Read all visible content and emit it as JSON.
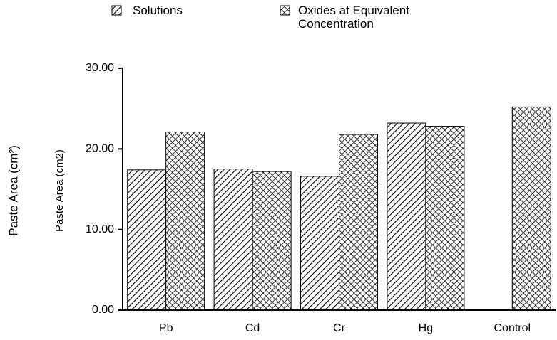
{
  "chart_data": {
    "type": "bar",
    "y_label_outer": "Paste Area (cm²)",
    "y_label": "Paste Area (cm2)",
    "categories": [
      "Pb",
      "Cd",
      "Cr",
      "Hg",
      "Control"
    ],
    "series": [
      {
        "name": "Solutions",
        "color": "#000000",
        "pattern": "diagonal",
        "values": [
          17.4,
          17.5,
          16.6,
          23.2,
          null
        ]
      },
      {
        "name": "Oxides at Equivalent Concentration",
        "color": "#000000",
        "pattern": "crosshatch",
        "values": [
          22.1,
          17.2,
          21.8,
          22.8,
          25.2
        ]
      }
    ],
    "ylim": [
      0,
      30
    ],
    "yticks": [
      {
        "value": 0,
        "label": "0.00"
      },
      {
        "value": 10,
        "label": "10.00"
      },
      {
        "value": 20,
        "label": "20.00"
      },
      {
        "value": 30,
        "label": "30.00"
      }
    ],
    "grid": false
  }
}
